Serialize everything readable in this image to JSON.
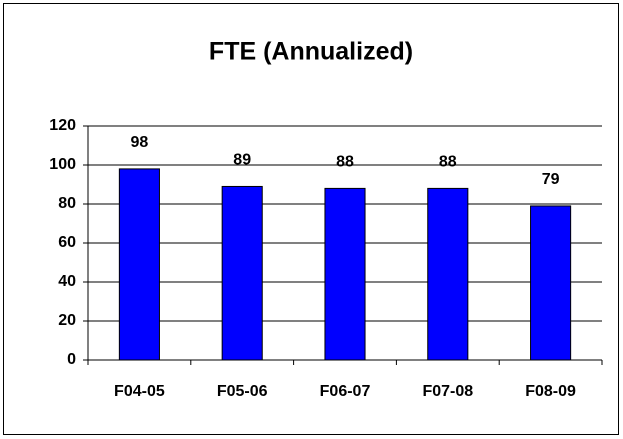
{
  "chart_data": {
    "type": "bar",
    "title": "FTE (Annualized)",
    "categories": [
      "F04-05",
      "F05-06",
      "F06-07",
      "F07-08",
      "F08-09"
    ],
    "values": [
      98,
      89,
      88,
      88,
      79
    ],
    "color": "#0000ff",
    "ylim": [
      0,
      120
    ],
    "yticks": [
      0,
      20,
      40,
      60,
      80,
      100,
      120
    ],
    "grid": true
  }
}
